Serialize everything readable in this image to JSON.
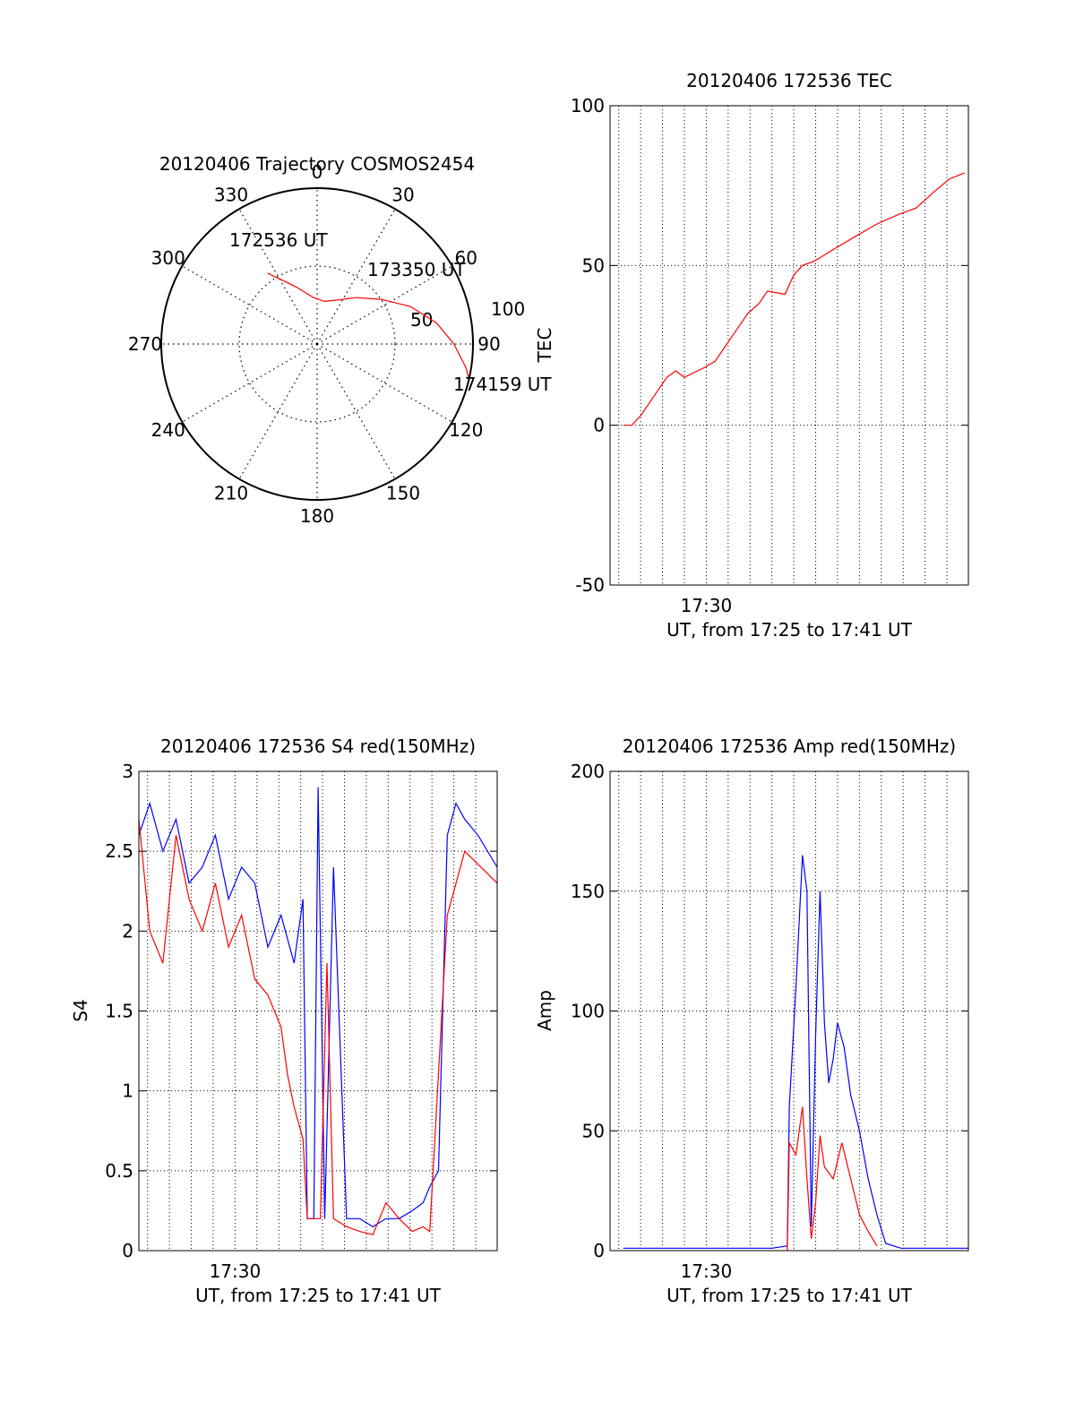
{
  "colors": {
    "red": "#ff0000",
    "blue": "#0000ff",
    "axis": "#000000",
    "grid": "#000000"
  },
  "chart_data": [
    {
      "type": "polar",
      "title": "20120406 Trajectory COSMOS2454",
      "angle_labels": [
        "0",
        "30",
        "60",
        "90",
        "120",
        "150",
        "180",
        "210",
        "240",
        "270",
        "300",
        "330"
      ],
      "radial_labels": [
        "50",
        "100"
      ],
      "track": {
        "points": [
          {
            "az": 325,
            "el": 40
          },
          {
            "az": 340,
            "el": 55
          },
          {
            "az": 355,
            "el": 63
          },
          {
            "az": 10,
            "el": 65
          },
          {
            "az": 25,
            "el": 62
          },
          {
            "az": 40,
            "el": 55
          },
          {
            "az": 55,
            "el": 45
          },
          {
            "az": 68,
            "el": 32
          },
          {
            "az": 80,
            "el": 20
          },
          {
            "az": 90,
            "el": 11
          },
          {
            "az": 99,
            "el": 3
          },
          {
            "az": 103,
            "el": 0
          }
        ],
        "labels": [
          {
            "text": "172536 UT",
            "az": 325,
            "el": 40
          },
          {
            "text": "173350 UT",
            "az": 40,
            "el": 55
          },
          {
            "text": "174159 UT",
            "az": 103,
            "el": 0
          }
        ]
      }
    },
    {
      "type": "line",
      "title": "20120406 172536 TEC",
      "xlabel": "UT, from 17:25 to 17:41 UT",
      "ylabel": "TEC",
      "xlim": [
        17.4267,
        17.6997
      ],
      "ylim": [
        -50,
        100
      ],
      "yticks": [
        -50,
        0,
        50,
        100
      ],
      "xticks": [
        {
          "value": 17.5,
          "label": "17:30"
        }
      ],
      "series": [
        {
          "color": "red",
          "x": [
            17.4367,
            17.4433,
            17.45,
            17.4567,
            17.4633,
            17.47,
            17.4767,
            17.4833,
            17.4983,
            17.5067,
            17.515,
            17.5233,
            17.5317,
            17.54,
            17.5467,
            17.56,
            17.5667,
            17.5733,
            17.58,
            17.585,
            17.5967,
            17.6133,
            17.63,
            17.6467,
            17.66,
            17.6733,
            17.685,
            17.6967
          ],
          "y": [
            0,
            0,
            3,
            7,
            11,
            15,
            17,
            15,
            18,
            20,
            25,
            30,
            35,
            38,
            42,
            41,
            47,
            50,
            51,
            52,
            55,
            59,
            63,
            66,
            68,
            73,
            77,
            79
          ]
        }
      ]
    },
    {
      "type": "line",
      "title": "20120406 172536 S4 red(150MHz)",
      "xlabel": "UT, from 17:25 to 17:41 UT",
      "ylabel": "S4",
      "xlim": [
        17.4267,
        17.6997
      ],
      "ylim": [
        0,
        3
      ],
      "yticks": [
        0,
        0.5,
        1,
        1.5,
        2,
        2.5,
        3
      ],
      "xticks": [
        {
          "value": 17.5,
          "label": "17:30"
        }
      ],
      "series": [
        {
          "color": "blue",
          "x": [
            17.4267,
            17.435,
            17.445,
            17.455,
            17.465,
            17.475,
            17.485,
            17.495,
            17.505,
            17.515,
            17.525,
            17.535,
            17.545,
            17.5517,
            17.555,
            17.5567,
            17.56,
            17.5633,
            17.5683,
            17.575,
            17.585,
            17.595,
            17.605,
            17.615,
            17.625,
            17.635,
            17.6433,
            17.6483,
            17.655,
            17.6617,
            17.6683,
            17.675,
            17.685,
            17.6997
          ],
          "y": [
            2.6,
            2.8,
            2.5,
            2.7,
            2.3,
            2.4,
            2.6,
            2.2,
            2.4,
            2.3,
            1.9,
            2.1,
            1.8,
            2.2,
            0.2,
            0.2,
            0.2,
            2.9,
            0.2,
            2.4,
            0.2,
            0.2,
            0.15,
            0.2,
            0.2,
            0.25,
            0.3,
            0.4,
            0.5,
            2.6,
            2.8,
            2.7,
            2.6,
            2.4
          ]
        },
        {
          "color": "red",
          "x": [
            17.4267,
            17.435,
            17.445,
            17.455,
            17.465,
            17.475,
            17.485,
            17.495,
            17.505,
            17.515,
            17.525,
            17.535,
            17.54,
            17.545,
            17.5517,
            17.555,
            17.56,
            17.565,
            17.57,
            17.575,
            17.585,
            17.595,
            17.605,
            17.615,
            17.625,
            17.635,
            17.6433,
            17.6483,
            17.6617,
            17.675,
            17.6997
          ],
          "y": [
            2.7,
            2.0,
            1.8,
            2.6,
            2.2,
            2.0,
            2.3,
            1.9,
            2.1,
            1.7,
            1.6,
            1.4,
            1.1,
            0.9,
            0.7,
            0.2,
            0.2,
            0.2,
            1.8,
            0.2,
            0.15,
            0.12,
            0.1,
            0.3,
            0.2,
            0.12,
            0.15,
            0.12,
            2.1,
            2.5,
            2.3
          ]
        }
      ]
    },
    {
      "type": "line",
      "title": "20120406 172536 Amp red(150MHz)",
      "xlabel": "UT, from 17:25 to 17:41 UT",
      "ylabel": "Amp",
      "xlim": [
        17.4267,
        17.6997
      ],
      "ylim": [
        0,
        200
      ],
      "yticks": [
        0,
        50,
        100,
        150,
        200
      ],
      "xticks": [
        {
          "value": 17.5,
          "label": "17:30"
        }
      ],
      "series": [
        {
          "color": "blue",
          "x": [
            17.4367,
            17.5,
            17.55,
            17.5617,
            17.5633,
            17.5683,
            17.5733,
            17.5767,
            17.58,
            17.5833,
            17.5867,
            17.59,
            17.5933,
            17.5967,
            17.6,
            17.605,
            17.61,
            17.6167,
            17.6233,
            17.63,
            17.6367,
            17.6483,
            17.6997
          ],
          "y": [
            1,
            1,
            1,
            2,
            60,
            110,
            165,
            150,
            10,
            90,
            150,
            95,
            70,
            80,
            95,
            85,
            65,
            50,
            30,
            15,
            3,
            1,
            1
          ]
        },
        {
          "color": "red",
          "x": [
            17.5617,
            17.5633,
            17.5683,
            17.5733,
            17.5767,
            17.58,
            17.5833,
            17.5867,
            17.59,
            17.5967,
            17.6033,
            17.61,
            17.6167,
            17.6233,
            17.63
          ],
          "y": [
            0,
            45,
            40,
            60,
            30,
            5,
            20,
            48,
            35,
            30,
            45,
            30,
            15,
            8,
            2
          ]
        }
      ]
    }
  ]
}
